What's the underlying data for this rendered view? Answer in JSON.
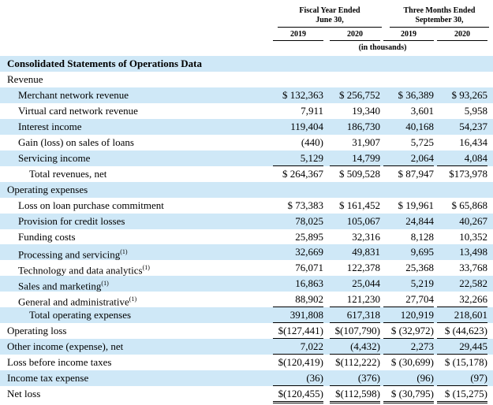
{
  "header": {
    "groups": [
      {
        "line1": "Fiscal Year Ended",
        "line2": "June 30,"
      },
      {
        "line1": "Three Months Ended",
        "line2": "September 30,"
      }
    ],
    "years": [
      "2019",
      "2020",
      "2019",
      "2020"
    ],
    "unit": "(in thousands)"
  },
  "section_title": "Consolidated Statements of Operations Data",
  "rows": [
    {
      "label": "Revenue"
    },
    {
      "label": "Merchant network revenue",
      "values": [
        "$ 132,363",
        "$ 256,752",
        "$ 36,389",
        "$ 93,265"
      ]
    },
    {
      "label": "Virtual card network revenue",
      "values": [
        "7,911",
        "19,340",
        "3,601",
        "5,958"
      ]
    },
    {
      "label": "Interest income",
      "values": [
        "119,404",
        "186,730",
        "40,168",
        "54,237"
      ]
    },
    {
      "label": "Gain (loss) on sales of loans",
      "values": [
        "(440)",
        "31,907",
        "5,725",
        "16,434"
      ]
    },
    {
      "label": "Servicing income",
      "values": [
        "5,129",
        "14,799",
        "2,064",
        "4,084"
      ]
    },
    {
      "label": "Total revenues, net",
      "values": [
        "$ 264,367",
        "$ 509,528",
        "$ 87,947",
        "$173,978"
      ]
    },
    {
      "label": "Operating expenses"
    },
    {
      "label": "Loss on loan purchase commitment",
      "values": [
        "$ 73,383",
        "$ 161,452",
        "$ 19,961",
        "$ 65,868"
      ]
    },
    {
      "label": "Provision for credit losses",
      "values": [
        "78,025",
        "105,067",
        "24,844",
        "40,267"
      ]
    },
    {
      "label": "Funding costs",
      "values": [
        "25,895",
        "32,316",
        "8,128",
        "10,352"
      ]
    },
    {
      "label": "Processing and servicing",
      "note": "(1)",
      "values": [
        "32,669",
        "49,831",
        "9,695",
        "13,498"
      ]
    },
    {
      "label": "Technology and data analytics",
      "note": "(1)",
      "values": [
        "76,071",
        "122,378",
        "25,368",
        "33,768"
      ]
    },
    {
      "label": "Sales and marketing",
      "note": "(1)",
      "values": [
        "16,863",
        "25,044",
        "5,219",
        "22,582"
      ]
    },
    {
      "label": "General and administrative",
      "note": "(1)",
      "values": [
        "88,902",
        "121,230",
        "27,704",
        "32,266"
      ]
    },
    {
      "label": "Total operating expenses",
      "values": [
        "391,808",
        "617,318",
        "120,919",
        "218,601"
      ]
    },
    {
      "label": "Operating loss",
      "values": [
        "$(127,441)",
        "$(107,790)",
        "$ (32,972)",
        "$ (44,623)"
      ]
    },
    {
      "label": "Other income (expense), net",
      "values": [
        "7,022",
        "(4,432)",
        "2,273",
        "29,445"
      ]
    },
    {
      "label": "Loss before income taxes",
      "values": [
        "$(120,419)",
        "$(112,222)",
        "$ (30,699)",
        "$ (15,178)"
      ]
    },
    {
      "label": "Income tax expense",
      "values": [
        "(36)",
        "(376)",
        "(96)",
        "(97)"
      ]
    },
    {
      "label": "Net loss",
      "values": [
        "$(120,455)",
        "$(112,598)",
        "$ (30,795)",
        "$ (15,275)"
      ]
    }
  ]
}
